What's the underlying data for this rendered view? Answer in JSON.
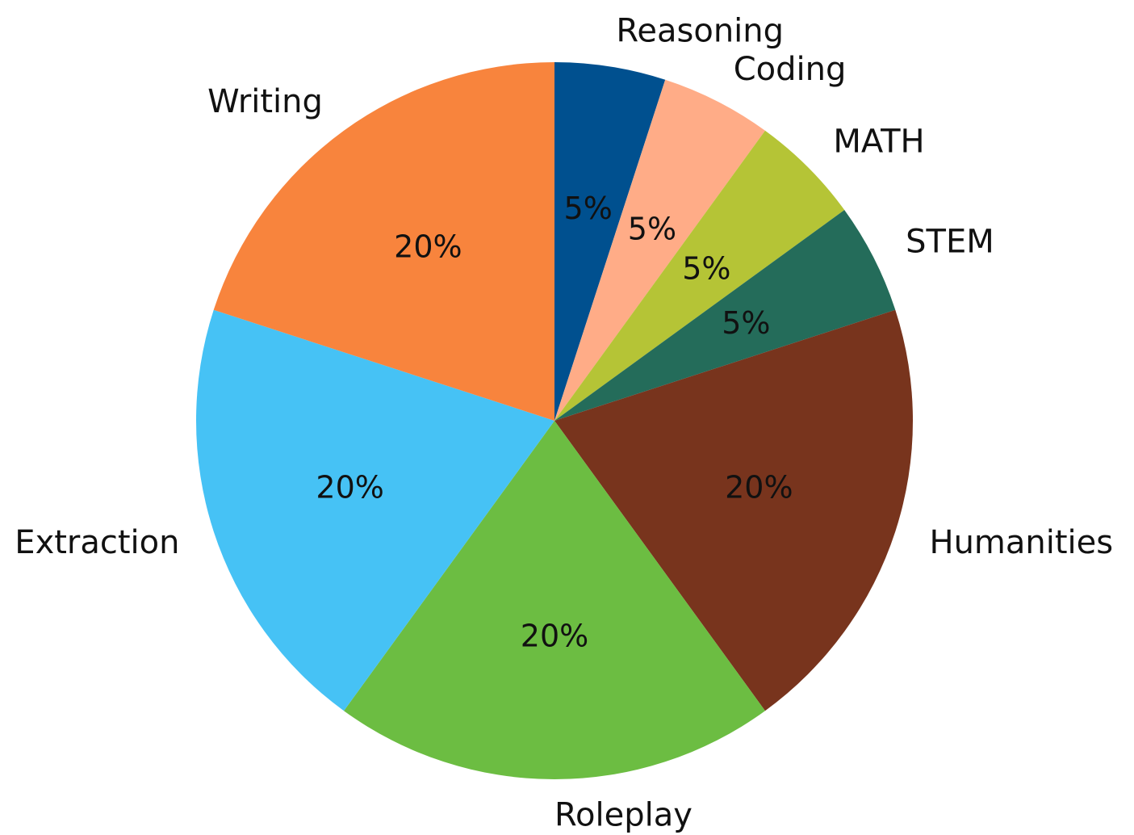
{
  "chart_data": {
    "type": "pie",
    "title": "",
    "start_angle_deg": 90,
    "direction": "clockwise",
    "slices": [
      {
        "label": "Reasoning",
        "value": 5,
        "pct_label": "5%",
        "color": "#00508f"
      },
      {
        "label": "Coding",
        "value": 5,
        "pct_label": "5%",
        "color": "#ffac87"
      },
      {
        "label": "MATH",
        "value": 5,
        "pct_label": "5%",
        "color": "#b5c436"
      },
      {
        "label": "STEM",
        "value": 5,
        "pct_label": "5%",
        "color": "#246c5a"
      },
      {
        "label": "Humanities",
        "value": 20,
        "pct_label": "20%",
        "color": "#78341d"
      },
      {
        "label": "Roleplay",
        "value": 20,
        "pct_label": "20%",
        "color": "#6cbd42"
      },
      {
        "label": "Extraction",
        "value": 20,
        "pct_label": "20%",
        "color": "#46c2f5"
      },
      {
        "label": "Writing",
        "value": 20,
        "pct_label": "20%",
        "color": "#f8843d"
      }
    ]
  }
}
